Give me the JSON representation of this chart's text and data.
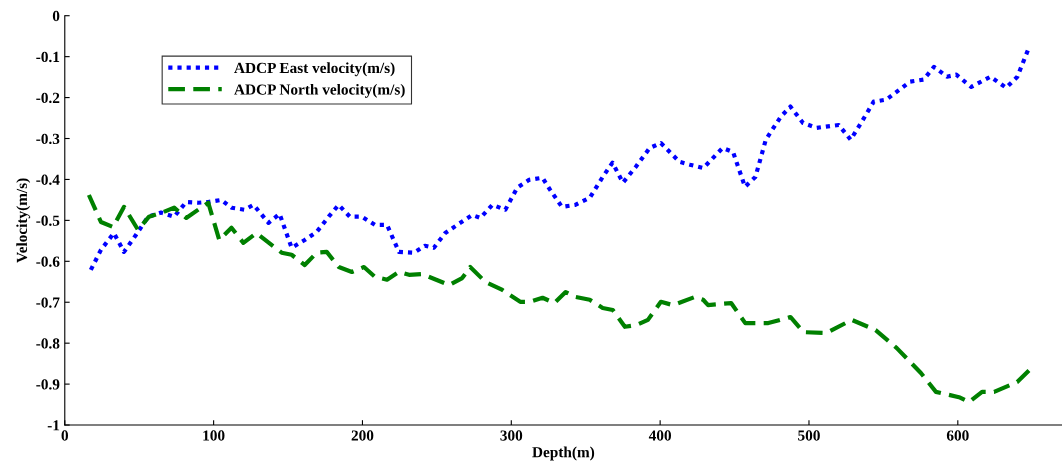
{
  "chart_data": {
    "type": "line",
    "xlabel": "Depth(m)",
    "ylabel": "Velocity(m/s)",
    "xlim": [
      0,
      670
    ],
    "ylim": [
      -1,
      0
    ],
    "xticks": [
      0,
      100,
      200,
      300,
      400,
      500,
      600
    ],
    "yticks": [
      -1,
      -0.9,
      -0.8,
      -0.7,
      -0.6,
      -0.5,
      -0.4,
      -0.3,
      -0.2,
      -0.1,
      0
    ],
    "grid": false,
    "legend": "top left",
    "marker": "none",
    "series": [
      {
        "name": "ADCP East velocity(m/s)",
        "color": "#0000ff",
        "line_style": "dotted",
        "x": [
          17.5,
          24.3,
          33,
          39.8,
          47.9,
          56,
          64.7,
          73.5,
          81.6,
          89.7,
          96.4,
          105.2,
          112,
          120.7,
          126.8,
          136.9,
          144.3,
          152.4,
          161.2,
          169.3,
          177.3,
          184,
          191.5,
          199.6,
          208.4,
          216.5,
          224.5,
          234.7,
          242,
          248,
          255.6,
          263.7,
          273.8,
          279.2,
          287.3,
          296,
          304,
          312,
          321,
          326,
          334,
          343,
          352.7,
          361.4,
          368,
          375,
          383.7,
          393,
          400.5,
          413,
          420,
          429,
          442,
          449,
          457,
          464,
          471,
          481,
          487.5,
          496,
          505,
          520,
          528,
          535,
          543.5,
          552,
          568,
          577,
          584,
          592.7,
          599,
          609,
          622,
          632.5,
          640,
          648
        ],
        "values": [
          -0.621,
          -0.572,
          -0.531,
          -0.577,
          -0.535,
          -0.491,
          -0.481,
          -0.491,
          -0.455,
          -0.457,
          -0.455,
          -0.45,
          -0.469,
          -0.474,
          -0.462,
          -0.506,
          -0.484,
          -0.567,
          -0.548,
          -0.528,
          -0.491,
          -0.462,
          -0.491,
          -0.491,
          -0.511,
          -0.511,
          -0.577,
          -0.579,
          -0.562,
          -0.567,
          -0.531,
          -0.511,
          -0.487,
          -0.494,
          -0.462,
          -0.474,
          -0.42,
          -0.401,
          -0.396,
          -0.425,
          -0.467,
          -0.462,
          -0.445,
          -0.394,
          -0.359,
          -0.408,
          -0.369,
          -0.323,
          -0.311,
          -0.357,
          -0.364,
          -0.372,
          -0.323,
          -0.333,
          -0.418,
          -0.394,
          -0.303,
          -0.247,
          -0.222,
          -0.262,
          -0.274,
          -0.267,
          -0.303,
          -0.262,
          -0.21,
          -0.205,
          -0.161,
          -0.156,
          -0.125,
          -0.149,
          -0.144,
          -0.174,
          -0.149,
          -0.176,
          -0.149,
          -0.076
        ]
      },
      {
        "name": "ADCP North velocity(m/s)",
        "color": "#008000",
        "line_style": "dashed",
        "x": [
          16.2,
          24.3,
          32.4,
          39.8,
          49.2,
          56.6,
          64.7,
          73.5,
          81.6,
          96.4,
          103.8,
          112,
          120,
          128.8,
          138.9,
          145.7,
          152.4,
          161.2,
          169.3,
          176,
          184.1,
          192.9,
          201,
          208.4,
          216.5,
          224.5,
          231.3,
          240,
          258.3,
          267,
          272.4,
          282.5,
          294,
          306,
          312.2,
          321,
          329,
          336.5,
          343.2,
          352.7,
          361.4,
          368.2,
          376.3,
          383.7,
          391.8,
          400.5,
          408.6,
          423.5,
          428.9,
          432.2,
          447.7,
          457.2,
          472.7,
          487.5,
          496.3,
          511.8,
          528.7,
          544.8,
          559,
          575.2,
          585.3,
          600.8,
          607.6,
          616.3,
          624.4,
          639.9,
          648
        ],
        "values": [
          -0.438,
          -0.504,
          -0.516,
          -0.467,
          -0.523,
          -0.491,
          -0.482,
          -0.469,
          -0.494,
          -0.457,
          -0.548,
          -0.518,
          -0.555,
          -0.531,
          -0.56,
          -0.579,
          -0.584,
          -0.609,
          -0.579,
          -0.577,
          -0.614,
          -0.626,
          -0.614,
          -0.638,
          -0.645,
          -0.626,
          -0.633,
          -0.631,
          -0.658,
          -0.641,
          -0.614,
          -0.65,
          -0.67,
          -0.699,
          -0.699,
          -0.689,
          -0.702,
          -0.675,
          -0.687,
          -0.694,
          -0.714,
          -0.719,
          -0.76,
          -0.756,
          -0.743,
          -0.699,
          -0.707,
          -0.687,
          -0.694,
          -0.707,
          -0.702,
          -0.751,
          -0.751,
          -0.736,
          -0.773,
          -0.775,
          -0.743,
          -0.768,
          -0.812,
          -0.873,
          -0.919,
          -0.932,
          -0.944,
          -0.919,
          -0.919,
          -0.895,
          -0.866
        ]
      }
    ]
  }
}
